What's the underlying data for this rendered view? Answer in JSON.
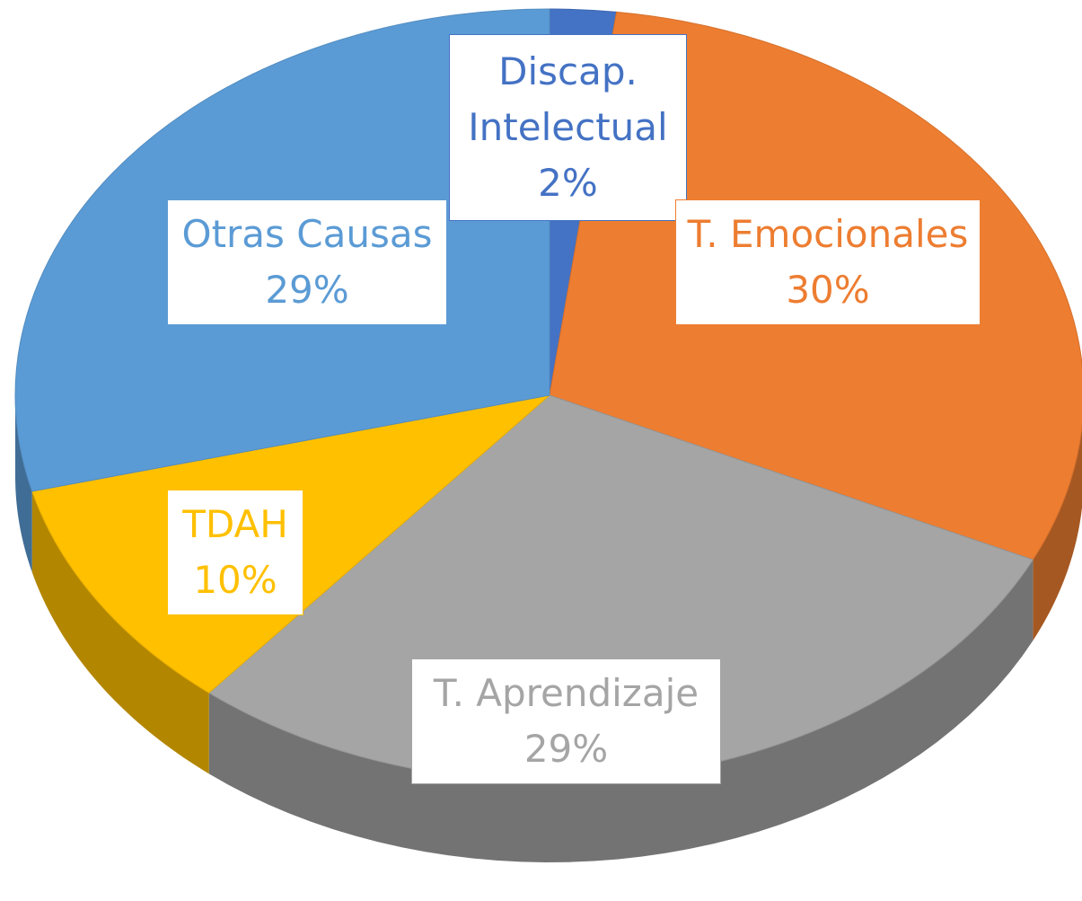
{
  "chart_data": {
    "type": "pie",
    "categories": [
      "Discap. Intelectual",
      "T. Emocionales",
      "T. Aprendizaje",
      "TDAH",
      "Otras Causas"
    ],
    "values": [
      2,
      30,
      29,
      10,
      29
    ],
    "value_labels": [
      "2%",
      "30%",
      "29%",
      "10%",
      "29%"
    ],
    "colors": [
      "#4472c4",
      "#ed7d31",
      "#a5a5a5",
      "#ffc000",
      "#5b9bd5"
    ]
  }
}
